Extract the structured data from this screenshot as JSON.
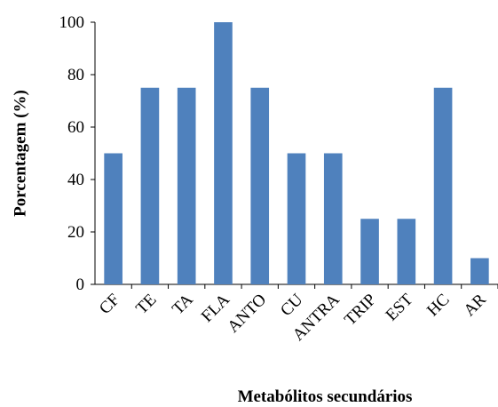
{
  "chart_data": {
    "type": "bar",
    "title": "",
    "xlabel": "Metabólitos secundários",
    "ylabel": "Porcentagem (%)",
    "categories": [
      "CF",
      "TE",
      "TA",
      "FLA",
      "ANTO",
      "CU",
      "ANTRA",
      "TRIP",
      "EST",
      "HC",
      "AR"
    ],
    "values": [
      50,
      75,
      75,
      100,
      75,
      50,
      50,
      25,
      25,
      75,
      10
    ],
    "ylim": [
      0,
      100
    ],
    "yticks": [
      0,
      20,
      40,
      60,
      80,
      100
    ],
    "grid": false,
    "legend": "none",
    "bar_color": "#4f81bd"
  }
}
